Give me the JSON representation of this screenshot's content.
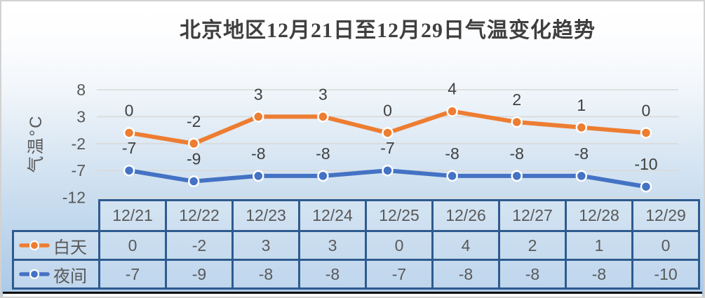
{
  "colors": {
    "day_series": "#ED7D31",
    "night_series": "#4472C4",
    "table_border": "#2E5B8F",
    "gridline": "#D9D9D9",
    "tick_text": "#595959",
    "title_text": "#3F3F3F",
    "data_label_text": "#404040"
  },
  "chart_data": {
    "type": "line",
    "title": "北京地区12月21日至12月29日气温变化趋势",
    "categories": [
      "12/21",
      "12/22",
      "12/23",
      "12/24",
      "12/25",
      "12/26",
      "12/27",
      "12/28",
      "12/29"
    ],
    "series": [
      {
        "name": "白天",
        "color": "#ED7D31",
        "values": [
          0,
          -2,
          3,
          3,
          0,
          4,
          2,
          1,
          0
        ]
      },
      {
        "name": "夜间",
        "color": "#4472C4",
        "values": [
          -7,
          -9,
          -8,
          -8,
          -7,
          -8,
          -8,
          -8,
          -10
        ]
      }
    ],
    "xlabel": "",
    "ylabel": "气温°C",
    "ylim": [
      -12,
      8
    ],
    "yticks": [
      8,
      3,
      -2,
      -7,
      -12
    ],
    "grid": true,
    "data_labels": true,
    "legend_position": "table-left",
    "data_table_shown": true
  }
}
